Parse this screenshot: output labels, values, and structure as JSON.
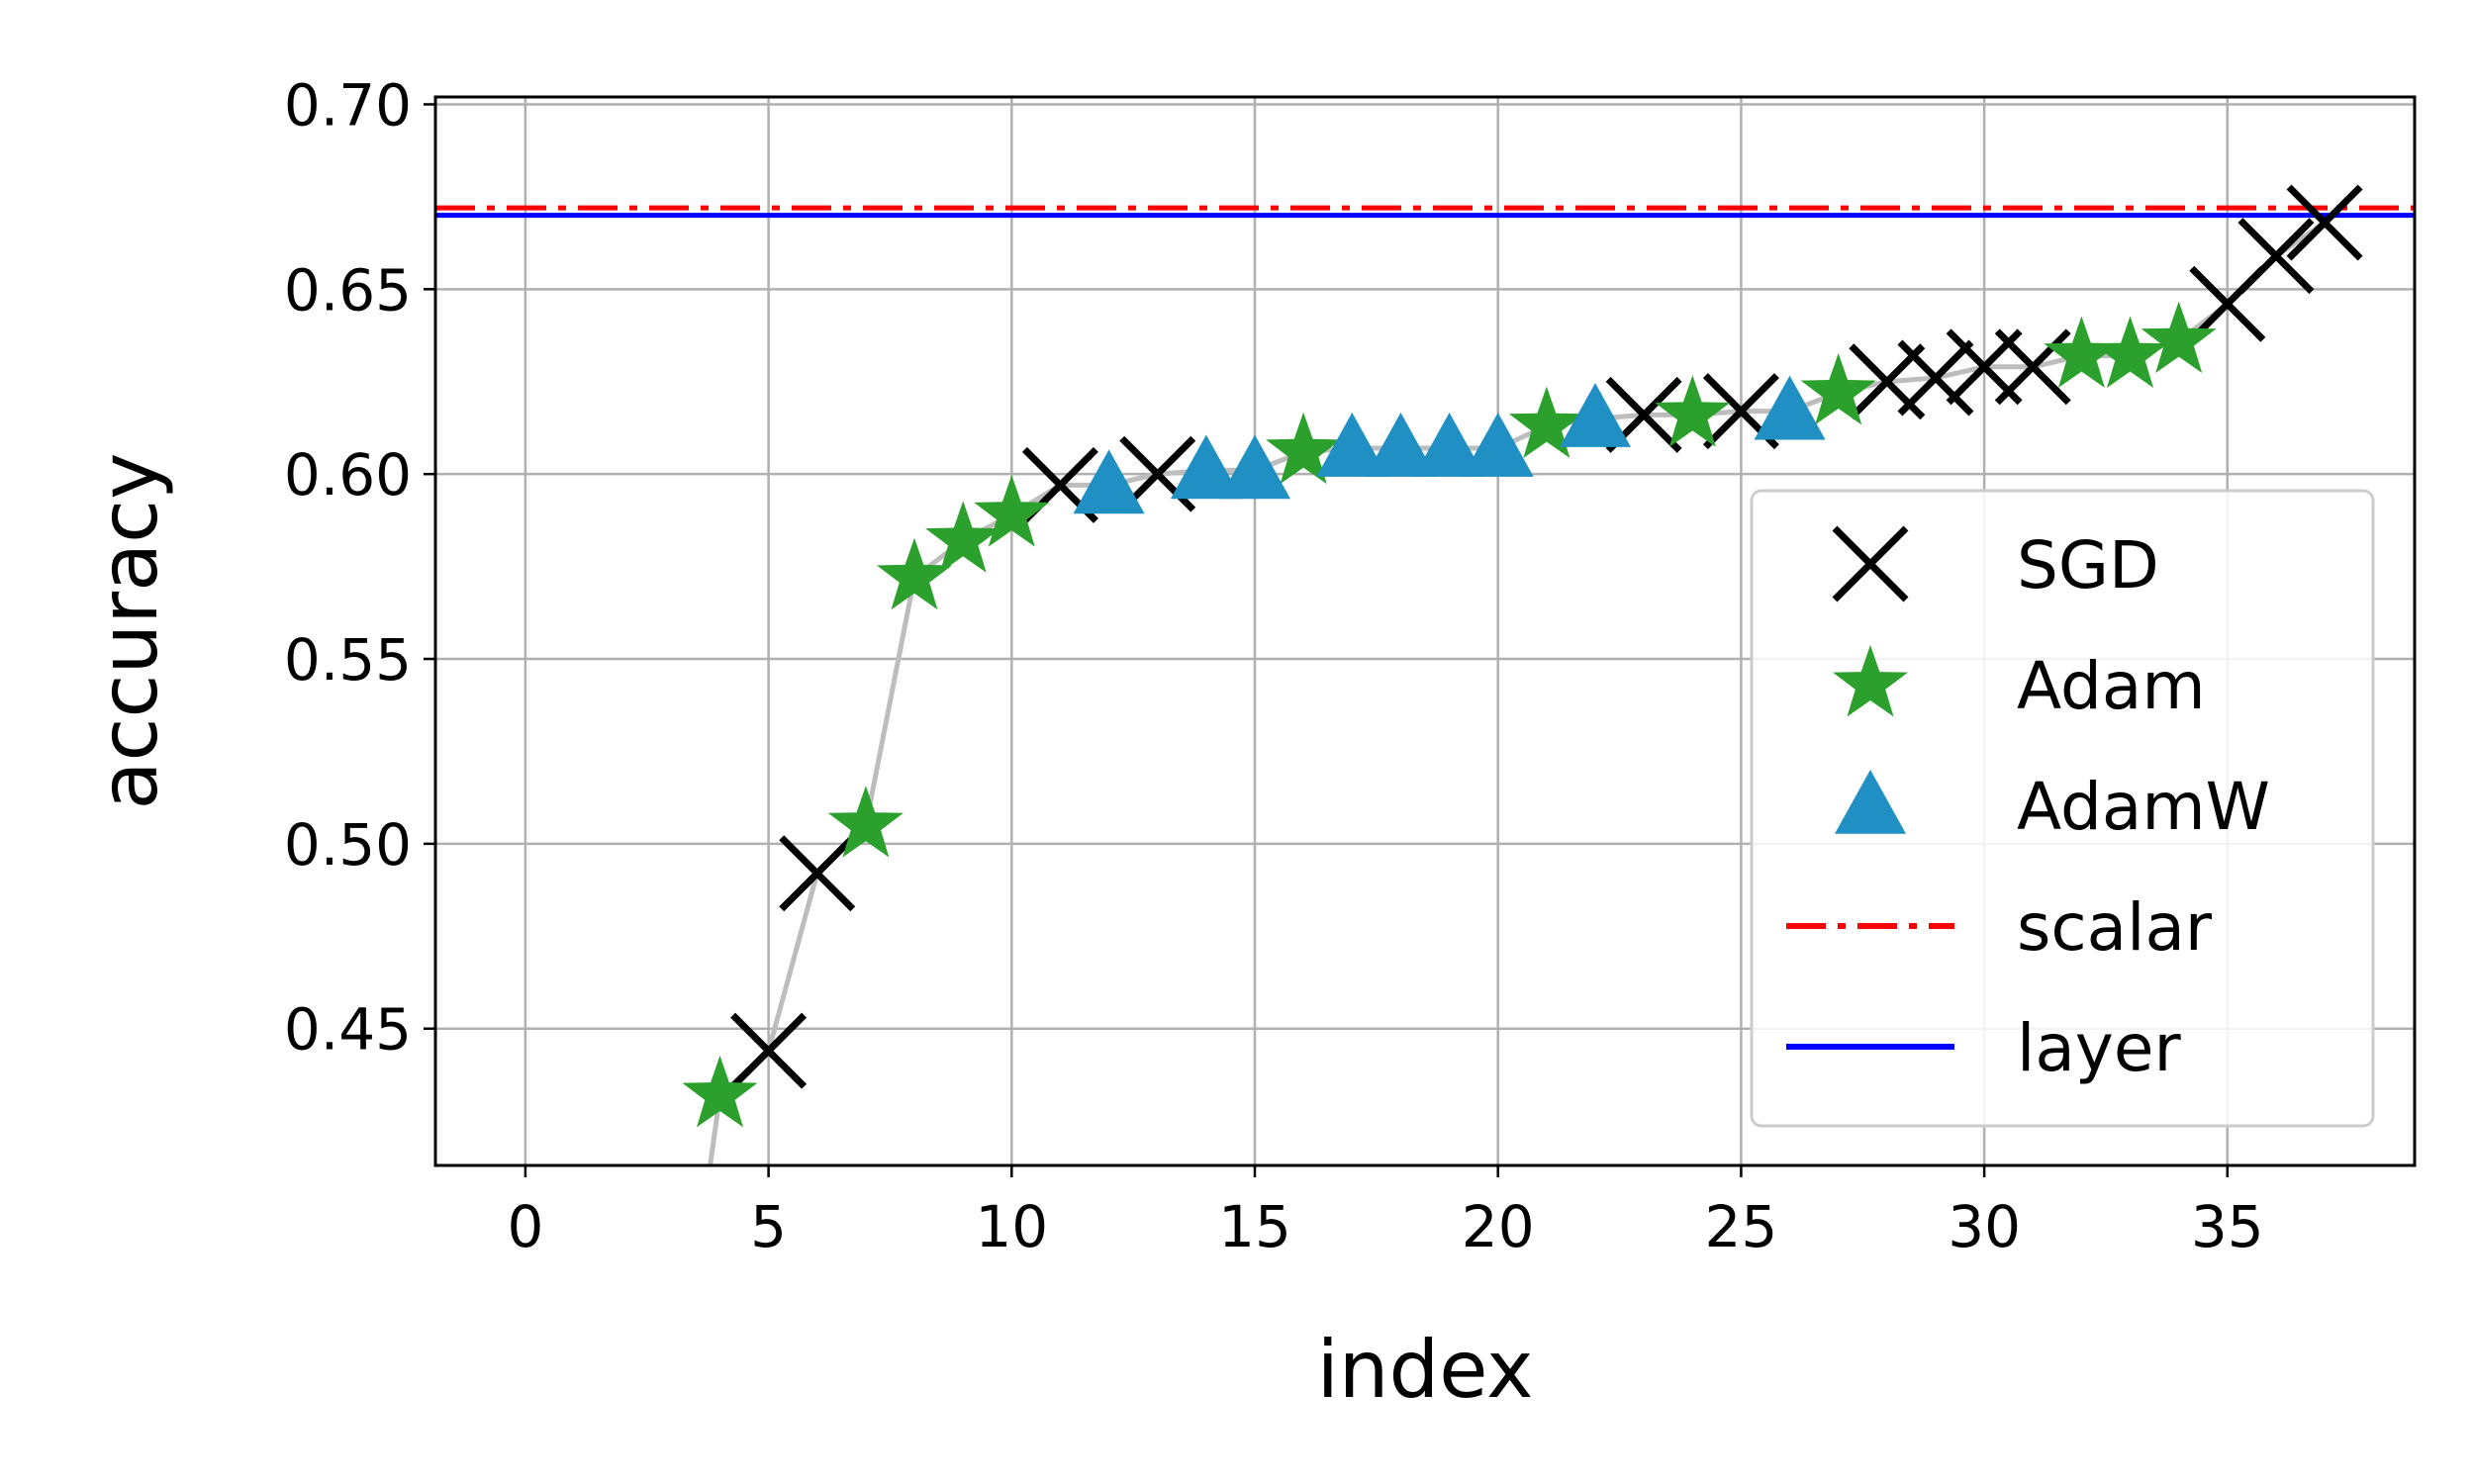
{
  "chart_data": {
    "type": "scatter",
    "xlabel": "index",
    "ylabel": "accuracy",
    "xlim": [
      -1.85,
      38.85
    ],
    "ylim": [
      0.413,
      0.702
    ],
    "xticks": [
      0,
      5,
      10,
      15,
      20,
      25,
      30,
      35
    ],
    "yticks": [
      0.45,
      0.5,
      0.55,
      0.6,
      0.65,
      0.7
    ],
    "ytick_labels": [
      "0.45",
      "0.50",
      "0.55",
      "0.60",
      "0.65",
      "0.70"
    ],
    "grid": true,
    "legend_position": "center-right",
    "trend_line": {
      "color": "#bdbdbd",
      "x": [
        3.8,
        4,
        5,
        6,
        7,
        8,
        9,
        10,
        11,
        12,
        13,
        14,
        15,
        16,
        17,
        18,
        19,
        20,
        21,
        22,
        23,
        24,
        25,
        26,
        27,
        28,
        29,
        30,
        31,
        32,
        33,
        34,
        35,
        36,
        37
      ],
      "y": [
        0.413,
        0.432,
        0.444,
        0.492,
        0.505,
        0.572,
        0.582,
        0.589,
        0.597,
        0.597,
        0.6,
        0.601,
        0.601,
        0.606,
        0.607,
        0.607,
        0.607,
        0.607,
        0.613,
        0.615,
        0.616,
        0.616,
        0.617,
        0.617,
        0.622,
        0.625,
        0.626,
        0.629,
        0.629,
        0.632,
        0.632,
        0.636,
        0.646,
        0.659,
        0.668
      ]
    },
    "series": [
      {
        "name": "SGD",
        "marker": "x",
        "color": "#000000",
        "x": [
          5,
          6,
          11,
          13,
          23,
          25,
          28,
          29,
          30,
          31,
          35,
          36,
          37
        ],
        "y": [
          0.444,
          0.492,
          0.597,
          0.6,
          0.616,
          0.617,
          0.625,
          0.626,
          0.629,
          0.629,
          0.646,
          0.659,
          0.668
        ]
      },
      {
        "name": "Adam",
        "marker": "star",
        "color": "#2ca02c",
        "x": [
          4,
          7,
          8,
          9,
          10,
          16,
          21,
          24,
          27,
          32,
          33,
          34
        ],
        "y": [
          0.432,
          0.505,
          0.572,
          0.582,
          0.589,
          0.606,
          0.613,
          0.616,
          0.622,
          0.632,
          0.632,
          0.636
        ]
      },
      {
        "name": "AdamW",
        "marker": "triangle",
        "color": "#1f8fc4",
        "x": [
          12,
          14,
          15,
          17,
          18,
          19,
          20,
          22,
          26
        ],
        "y": [
          0.597,
          0.601,
          0.601,
          0.607,
          0.607,
          0.607,
          0.607,
          0.615,
          0.617
        ]
      }
    ],
    "hlines": [
      {
        "name": "scalar",
        "y": 0.672,
        "color": "#ff0000",
        "style": "dashdot"
      },
      {
        "name": "layer",
        "y": 0.67,
        "color": "#0000ff",
        "style": "solid"
      }
    ]
  }
}
